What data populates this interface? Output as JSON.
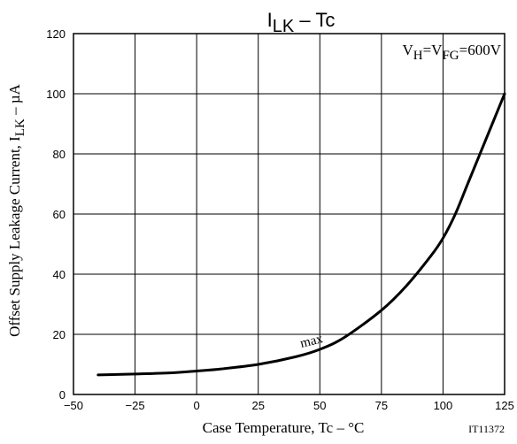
{
  "chart_data": {
    "type": "line",
    "title": {
      "base": "I",
      "sub": "LK",
      "rest": " – Tc"
    },
    "xlabel": "Case Temperature, Tc  –  °C",
    "ylabel": {
      "base": "Offset Supply Leakage Current, I",
      "sub": "LK",
      "rest": "  –  µA"
    },
    "xlim": [
      -50,
      125
    ],
    "ylim": [
      0,
      120
    ],
    "xticks": [
      -50,
      -25,
      0,
      25,
      50,
      75,
      100,
      125
    ],
    "yticks": [
      0,
      20,
      40,
      60,
      80,
      100,
      120
    ],
    "grid": true,
    "condition": {
      "v1": "V",
      "s1": "H",
      "eq1": "=V",
      "s2": "FG",
      "eq2": "=600V"
    },
    "figure_id": "IT11372",
    "series": [
      {
        "name": "max",
        "color": "#000000",
        "x": [
          -40,
          -25,
          -10,
          0,
          10,
          25,
          40,
          50,
          60,
          75,
          85,
          95,
          100,
          105,
          110,
          115,
          120,
          125
        ],
        "y": [
          6.5,
          6.8,
          7.2,
          7.8,
          8.5,
          10,
          12.5,
          15,
          19,
          28,
          36,
          46,
          52,
          60,
          70,
          80,
          90,
          100
        ]
      }
    ],
    "annotations": [
      {
        "text": "max",
        "x": 47,
        "y": 16.5
      }
    ]
  }
}
